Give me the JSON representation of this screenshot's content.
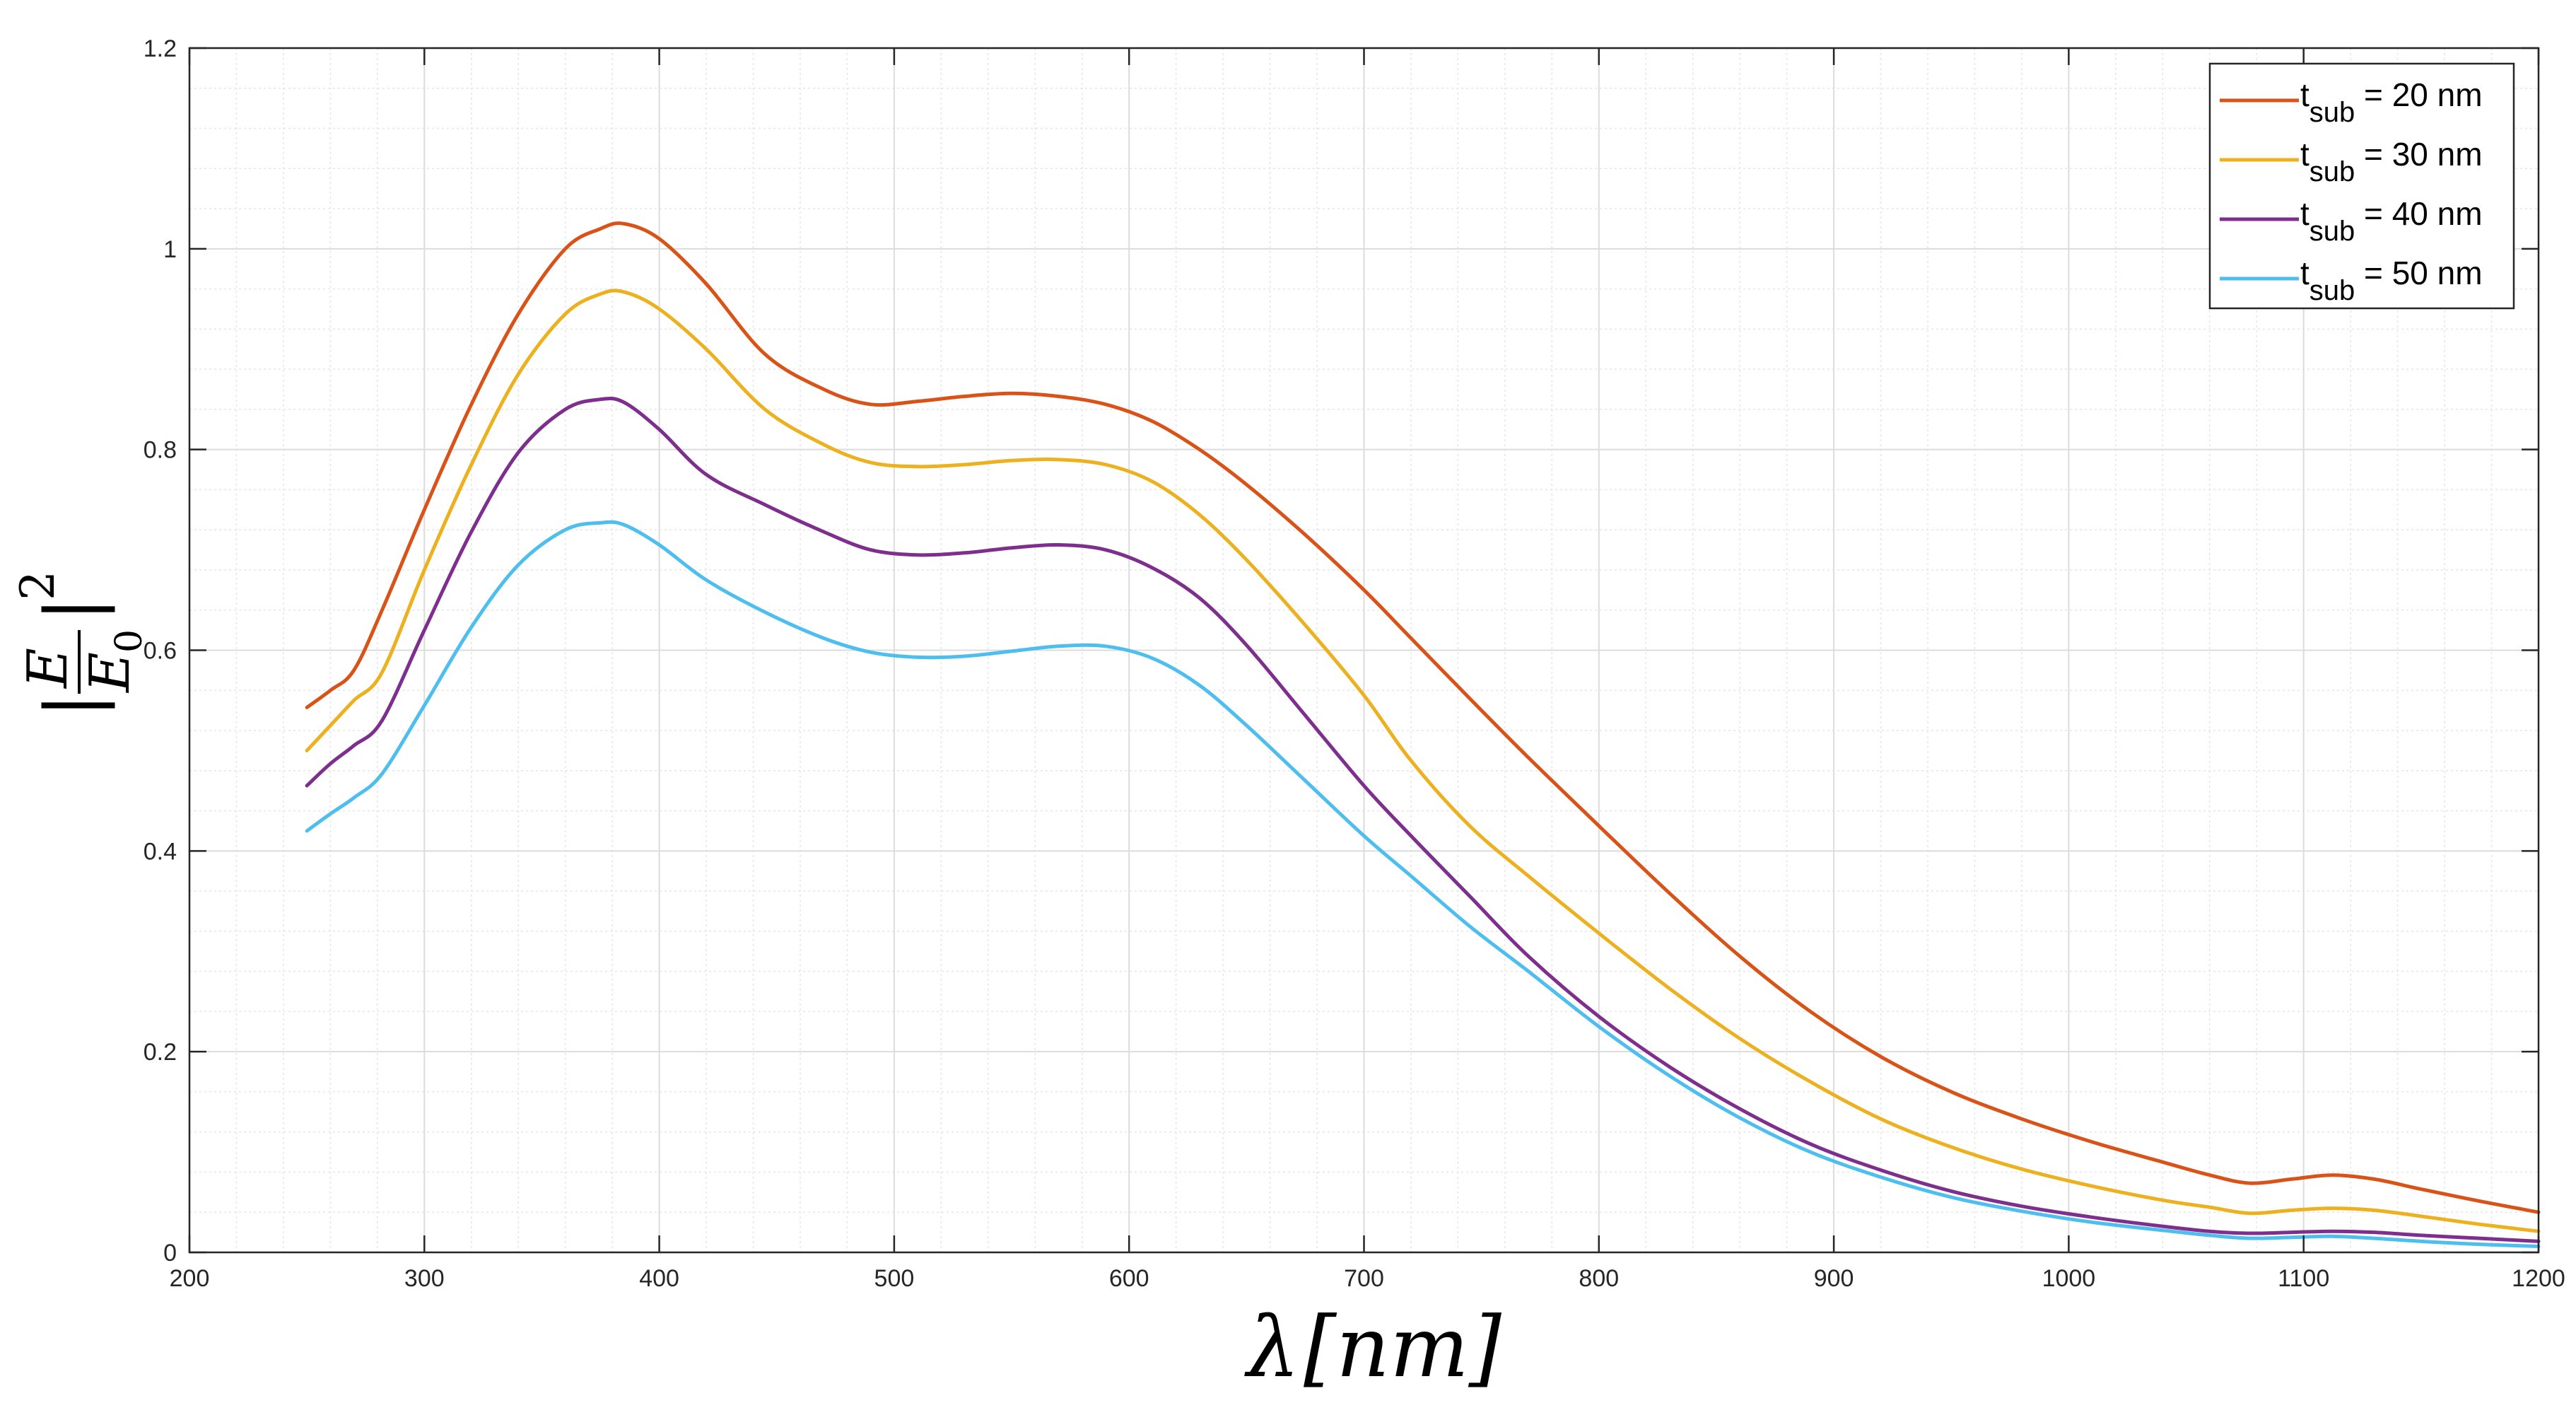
{
  "chart_data": {
    "type": "line",
    "title": "",
    "xlabel": "λ [nm]",
    "ylabel": "|E/E0|^2",
    "ylabel_parts": {
      "bar_open": "|",
      "numerator": "E",
      "denominator": "E",
      "denominator_subscript": "0",
      "bar_close": "|",
      "exponent": "2"
    },
    "xlabel_parts": {
      "symbol": "λ",
      "unit": "[nm]"
    },
    "xlim": [
      200,
      1200
    ],
    "ylim": [
      0,
      1.2
    ],
    "grid": true,
    "minor_grid": true,
    "legend_position": "top-right",
    "x_ticks": [
      200,
      300,
      400,
      500,
      600,
      700,
      800,
      900,
      1000,
      1100,
      1200
    ],
    "y_ticks": [
      0,
      0.2,
      0.4,
      0.6,
      0.8,
      1,
      1.2
    ],
    "x_tick_labels": [
      "200",
      "300",
      "400",
      "500",
      "600",
      "700",
      "800",
      "900",
      "1000",
      "1100",
      "1200"
    ],
    "y_tick_labels": [
      "0",
      "0.2",
      "0.4",
      "0.6",
      "0.8",
      "1",
      "1.2"
    ],
    "x": [
      250,
      260,
      270,
      282,
      300,
      320,
      340,
      360,
      375,
      385,
      400,
      420,
      445,
      470,
      490,
      510,
      530,
      550,
      570,
      590,
      610,
      630,
      650,
      675,
      700,
      720,
      745,
      770,
      800,
      830,
      860,
      890,
      920,
      950,
      980,
      1010,
      1040,
      1060,
      1077,
      1095,
      1112,
      1130,
      1150,
      1175,
      1200
    ],
    "series": [
      {
        "name": "t_sub = 20 nm",
        "label_main": "t",
        "label_sub": "sub",
        "label_rest": " = 20 nm",
        "color": "#D95319",
        "values": [
          0.543,
          0.56,
          0.58,
          0.64,
          0.74,
          0.845,
          0.935,
          1.0,
          1.02,
          1.025,
          1.01,
          0.965,
          0.895,
          0.86,
          0.845,
          0.848,
          0.853,
          0.856,
          0.853,
          0.845,
          0.828,
          0.8,
          0.765,
          0.715,
          0.66,
          0.612,
          0.552,
          0.493,
          0.425,
          0.358,
          0.295,
          0.24,
          0.195,
          0.16,
          0.133,
          0.11,
          0.09,
          0.077,
          0.069,
          0.073,
          0.077,
          0.073,
          0.063,
          0.051,
          0.04
        ]
      },
      {
        "name": "t_sub = 30 nm",
        "label_main": "t",
        "label_sub": "sub",
        "label_rest": " = 30 nm",
        "color": "#EDB120",
        "values": [
          0.5,
          0.525,
          0.55,
          0.578,
          0.68,
          0.785,
          0.875,
          0.935,
          0.955,
          0.957,
          0.94,
          0.9,
          0.84,
          0.805,
          0.787,
          0.783,
          0.785,
          0.789,
          0.79,
          0.785,
          0.768,
          0.735,
          0.69,
          0.625,
          0.555,
          0.49,
          0.425,
          0.375,
          0.318,
          0.263,
          0.213,
          0.17,
          0.133,
          0.105,
          0.083,
          0.066,
          0.052,
          0.045,
          0.039,
          0.042,
          0.044,
          0.042,
          0.036,
          0.028,
          0.021
        ]
      },
      {
        "name": "t_sub = 40 nm",
        "label_main": "t",
        "label_sub": "sub",
        "label_rest": " = 40 nm",
        "color": "#7E2F8E",
        "values": [
          0.465,
          0.487,
          0.505,
          0.53,
          0.62,
          0.718,
          0.797,
          0.84,
          0.85,
          0.847,
          0.82,
          0.775,
          0.745,
          0.718,
          0.7,
          0.695,
          0.697,
          0.702,
          0.705,
          0.7,
          0.682,
          0.652,
          0.605,
          0.535,
          0.465,
          0.415,
          0.355,
          0.295,
          0.235,
          0.185,
          0.143,
          0.108,
          0.082,
          0.061,
          0.046,
          0.035,
          0.026,
          0.021,
          0.019,
          0.02,
          0.021,
          0.02,
          0.017,
          0.014,
          0.011
        ]
      },
      {
        "name": "t_sub = 50 nm",
        "label_main": "t",
        "label_sub": "sub",
        "label_rest": " = 50 nm",
        "color": "#4DBEEE",
        "values": [
          0.42,
          0.437,
          0.453,
          0.477,
          0.545,
          0.623,
          0.685,
          0.72,
          0.727,
          0.725,
          0.705,
          0.67,
          0.638,
          0.612,
          0.598,
          0.593,
          0.594,
          0.599,
          0.604,
          0.604,
          0.592,
          0.565,
          0.525,
          0.47,
          0.415,
          0.375,
          0.325,
          0.28,
          0.225,
          0.176,
          0.134,
          0.1,
          0.075,
          0.055,
          0.041,
          0.03,
          0.022,
          0.017,
          0.014,
          0.015,
          0.016,
          0.014,
          0.011,
          0.008,
          0.006
        ]
      }
    ]
  }
}
